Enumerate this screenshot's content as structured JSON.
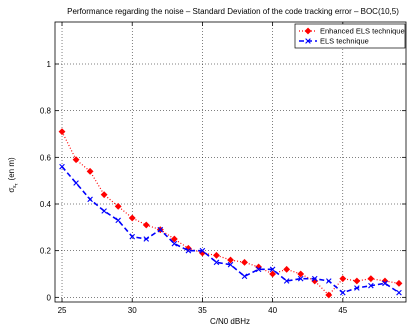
{
  "chart_data": {
    "type": "line",
    "title": "Performance regarding the noise – Standard Deviation of the code tracking error – BOC(10,5)",
    "xlabel": "C/N0 dBHz",
    "ylabel": "σ",
    "ylabel_sub": "ε",
    "ylabel_subsub": "τ",
    "ylabel_unit": "(en m)",
    "xlim": [
      24.5,
      49.5
    ],
    "ylim": [
      -0.02,
      1.18
    ],
    "xticks": [
      25,
      30,
      35,
      40,
      45
    ],
    "xtick_labels": [
      "25",
      "30",
      "35",
      "40",
      "45"
    ],
    "yticks": [
      0,
      0.2,
      0.4,
      0.6,
      0.8,
      1
    ],
    "ytick_labels": [
      "0",
      "0.2",
      "0.4",
      "0.6",
      "0.8",
      "1"
    ],
    "grid": true,
    "legend_position": "top-right",
    "x": [
      25,
      26,
      27,
      28,
      29,
      30,
      31,
      32,
      33,
      34,
      35,
      36,
      37,
      38,
      39,
      40,
      41,
      42,
      43,
      44,
      45,
      46,
      47,
      48,
      49
    ],
    "series": [
      {
        "name": "Enhanced ELS technique",
        "color": "#ff0000",
        "line_style": "dotted",
        "marker": "diamond",
        "values": [
          0.71,
          0.59,
          0.54,
          0.44,
          0.39,
          0.34,
          0.31,
          0.29,
          0.25,
          0.21,
          0.19,
          0.18,
          0.16,
          0.15,
          0.13,
          0.1,
          0.12,
          0.1,
          0.07,
          0.01,
          0.08,
          0.07,
          0.08,
          0.07,
          0.06
        ]
      },
      {
        "name": "ELS technique",
        "color": "#0000ff",
        "line_style": "dashed",
        "marker": "x",
        "values": [
          0.56,
          0.49,
          0.42,
          0.37,
          0.33,
          0.26,
          0.25,
          0.29,
          0.23,
          0.2,
          0.2,
          0.15,
          0.14,
          0.09,
          0.12,
          0.12,
          0.07,
          0.08,
          0.08,
          0.07,
          0.02,
          0.04,
          0.05,
          0.06,
          0.02
        ]
      }
    ]
  }
}
